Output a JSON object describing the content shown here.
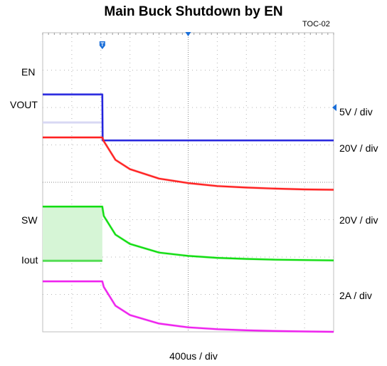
{
  "chart_data": {
    "type": "line",
    "title": "Main Buck Shutdown by EN",
    "subtitle": "TOC-02",
    "xlabel": "400us / div",
    "grid": true,
    "x_divisions": 10,
    "y_divisions": 8,
    "x_range_div": [
      0,
      10
    ],
    "trigger_time_div": 2.05,
    "series": [
      {
        "name": "EN",
        "scale": "5V / div",
        "color": "#2222dd",
        "x": [
          0,
          2.05,
          2.06,
          10
        ],
        "y_div": [
          6.35,
          6.35,
          5.12,
          5.12
        ]
      },
      {
        "name": "VOUT",
        "scale": "20V / div",
        "color": "#ff2222",
        "x": [
          0,
          2.05,
          2.1,
          2.5,
          3,
          4,
          5,
          6,
          7,
          8,
          9,
          10
        ],
        "y_div": [
          5.2,
          5.2,
          5.1,
          4.6,
          4.35,
          4.1,
          3.98,
          3.9,
          3.86,
          3.83,
          3.81,
          3.8
        ]
      },
      {
        "name": "SW",
        "scale": "20V / div",
        "color": "#11dd11",
        "x": [
          0,
          2.05,
          2.1,
          2.5,
          3,
          4,
          5,
          6,
          7,
          8,
          9,
          10
        ],
        "y_div": [
          3.35,
          3.35,
          3.1,
          2.6,
          2.35,
          2.12,
          2.03,
          1.98,
          1.95,
          1.93,
          1.92,
          1.91
        ]
      },
      {
        "name": "Iout",
        "scale": "2A / div",
        "color": "#ee22ee",
        "x": [
          0,
          2.05,
          2.1,
          2.5,
          3,
          4,
          5,
          6,
          7,
          8,
          9,
          10
        ],
        "y_div": [
          1.35,
          1.35,
          1.2,
          0.7,
          0.45,
          0.22,
          0.12,
          0.07,
          0.04,
          0.02,
          0.01,
          0
        ]
      }
    ]
  }
}
